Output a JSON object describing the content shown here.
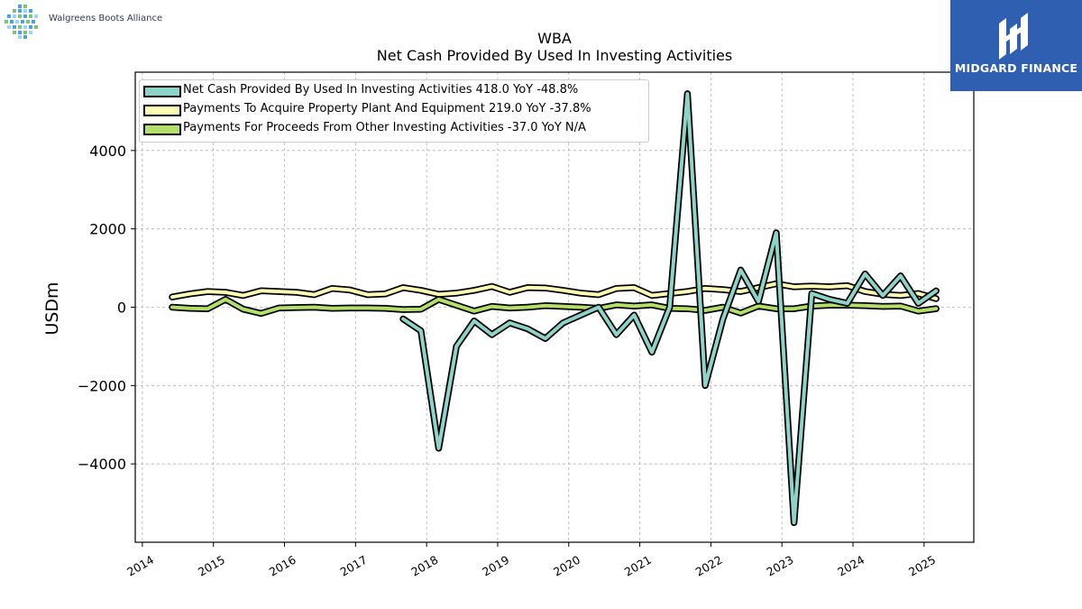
{
  "header": {
    "brand": "Walgreens Boots Alliance",
    "watermark": "MIDGARD FINANCE"
  },
  "colors": {
    "background": "#ffffff",
    "watermark_bg": "#2f5fb0",
    "grid": "#b0b0b0"
  },
  "chart_data": {
    "type": "line",
    "title": "WBA",
    "subtitle": "Net Cash Provided By Used In Investing Activities",
    "xlabel": "",
    "ylabel": "USDm",
    "xlim": [
      2013.9,
      2025.7
    ],
    "ylim": [
      -6000,
      6000
    ],
    "x_ticks": [
      "2014",
      "2015",
      "2016",
      "2017",
      "2018",
      "2019",
      "2020",
      "2021",
      "2022",
      "2023",
      "2024",
      "2025"
    ],
    "y_ticks": [
      -4000,
      -2000,
      0,
      2000,
      4000
    ],
    "y_tick_labels": [
      "−4000",
      "−2000",
      "0",
      "2000",
      "4000"
    ],
    "grid": true,
    "legend_position": "top-left",
    "series": [
      {
        "name": "Net Cash Provided By Used In Investing Activities",
        "legend_label": "Net Cash Provided By Used In Investing Activities  418.0 YoY -48.8%",
        "color": "#8dd3c7",
        "x": [
          2017.67,
          2017.92,
          2018.17,
          2018.42,
          2018.67,
          2018.92,
          2019.17,
          2019.42,
          2019.67,
          2019.92,
          2020.17,
          2020.42,
          2020.67,
          2020.92,
          2021.17,
          2021.42,
          2021.67,
          2021.92,
          2022.17,
          2022.42,
          2022.67,
          2022.92,
          2023.17,
          2023.42,
          2023.67,
          2023.92,
          2024.17,
          2024.42,
          2024.67,
          2024.92,
          2025.17
        ],
        "y": [
          -300,
          -600,
          -3600,
          -1000,
          -350,
          -700,
          -400,
          -550,
          -800,
          -400,
          -200,
          0,
          -700,
          -200,
          -1150,
          0,
          5450,
          -2000,
          -300,
          950,
          150,
          1900,
          -5500,
          350,
          200,
          100,
          850,
          300,
          800,
          100,
          418
        ]
      },
      {
        "name": "Payments To Acquire Property Plant And Equipment",
        "legend_label": "Payments To Acquire Property Plant And Equipment  219.0 YoY -37.8%",
        "color": "#ffffb3",
        "x": [
          2014.42,
          2014.67,
          2014.92,
          2015.17,
          2015.42,
          2015.67,
          2015.92,
          2016.17,
          2016.42,
          2016.67,
          2016.92,
          2017.17,
          2017.42,
          2017.67,
          2017.92,
          2018.17,
          2018.42,
          2018.67,
          2018.92,
          2019.17,
          2019.42,
          2019.67,
          2019.92,
          2020.17,
          2020.42,
          2020.67,
          2020.92,
          2021.17,
          2021.42,
          2021.67,
          2021.92,
          2022.17,
          2022.42,
          2022.67,
          2022.92,
          2023.17,
          2023.42,
          2023.67,
          2023.92,
          2024.17,
          2024.42,
          2024.67,
          2024.92,
          2025.17
        ],
        "y": [
          260,
          340,
          400,
          380,
          300,
          420,
          400,
          380,
          320,
          480,
          440,
          320,
          340,
          500,
          430,
          330,
          360,
          430,
          530,
          380,
          500,
          490,
          430,
          360,
          320,
          480,
          500,
          300,
          350,
          400,
          480,
          450,
          400,
          500,
          600,
          520,
          540,
          520,
          550,
          400,
          330,
          300,
          350,
          219
        ]
      },
      {
        "name": "Payments For Proceeds From Other Investing Activities",
        "legend_label": "Payments For Proceeds From Other Investing Activities  -37.0 YoY N/A",
        "color": "#b3de69",
        "x": [
          2014.42,
          2014.67,
          2014.92,
          2015.17,
          2015.42,
          2015.67,
          2015.92,
          2016.17,
          2016.42,
          2016.67,
          2016.92,
          2017.17,
          2017.42,
          2017.67,
          2017.92,
          2018.17,
          2018.42,
          2018.67,
          2018.92,
          2019.17,
          2019.42,
          2019.67,
          2019.92,
          2020.17,
          2020.42,
          2020.67,
          2020.92,
          2021.17,
          2021.42,
          2021.67,
          2021.92,
          2022.17,
          2022.42,
          2022.67,
          2022.92,
          2023.17,
          2023.42,
          2023.67,
          2023.92,
          2024.17,
          2024.42,
          2024.67,
          2024.92,
          2025.17
        ],
        "y": [
          0,
          -30,
          -40,
          200,
          -50,
          -160,
          -20,
          -10,
          0,
          -30,
          -20,
          -20,
          -30,
          -60,
          -50,
          200,
          50,
          -100,
          20,
          -20,
          0,
          40,
          20,
          0,
          -30,
          60,
          30,
          60,
          -30,
          -40,
          -80,
          0,
          -150,
          30,
          -40,
          -40,
          30,
          50,
          50,
          40,
          20,
          30,
          -100,
          -37
        ]
      }
    ]
  }
}
